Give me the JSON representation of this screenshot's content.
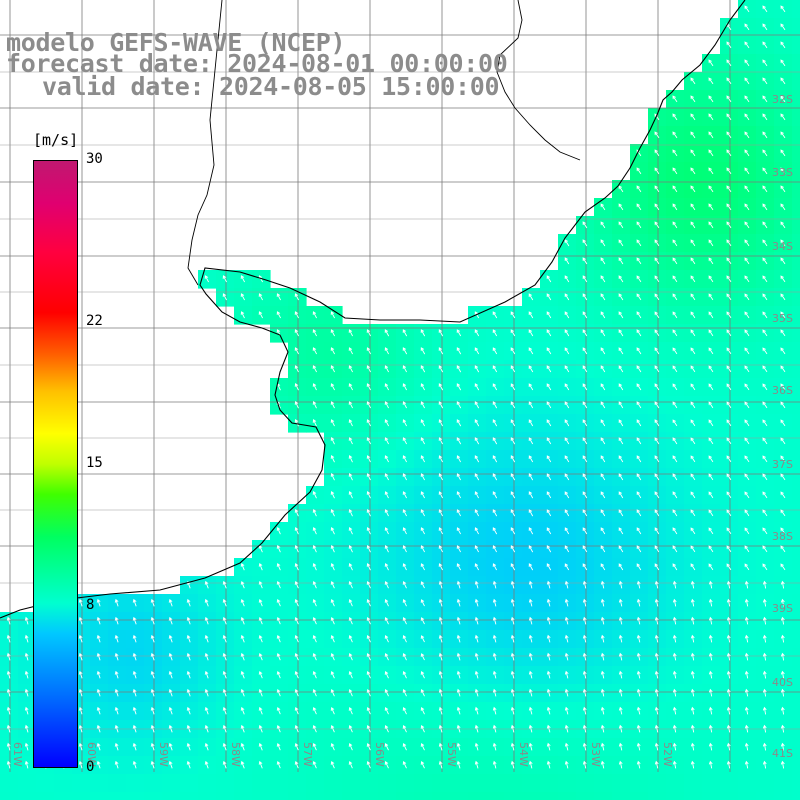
{
  "title": {
    "line1": "modelo GEFS-WAVE (NCEP)",
    "line2": "forecast date: 2024-08-01 00:00:00",
    "line3": "valid date: 2024-08-05 15:00:00"
  },
  "colorbar": {
    "unit": "[m/s]",
    "min": 0,
    "max": 30,
    "ticks": [
      {
        "value": 30,
        "label": "30"
      },
      {
        "value": 22,
        "label": "22"
      },
      {
        "value": 15,
        "label": "15"
      },
      {
        "value": 8,
        "label": "8"
      },
      {
        "value": 0,
        "label": "0"
      }
    ]
  },
  "map": {
    "variable": "wind speed",
    "lat_labels": [
      "32S",
      "33S",
      "34S",
      "35S",
      "36S",
      "37S",
      "38S",
      "39S",
      "40S",
      "41S"
    ],
    "lon_labels": [
      "61W",
      "60W",
      "59W",
      "58W",
      "57W",
      "56W",
      "55W",
      "54W",
      "53W",
      "52W"
    ],
    "land_color": "#ffffff",
    "grid_color": "#808080",
    "arrow_color": "#ffffff"
  }
}
